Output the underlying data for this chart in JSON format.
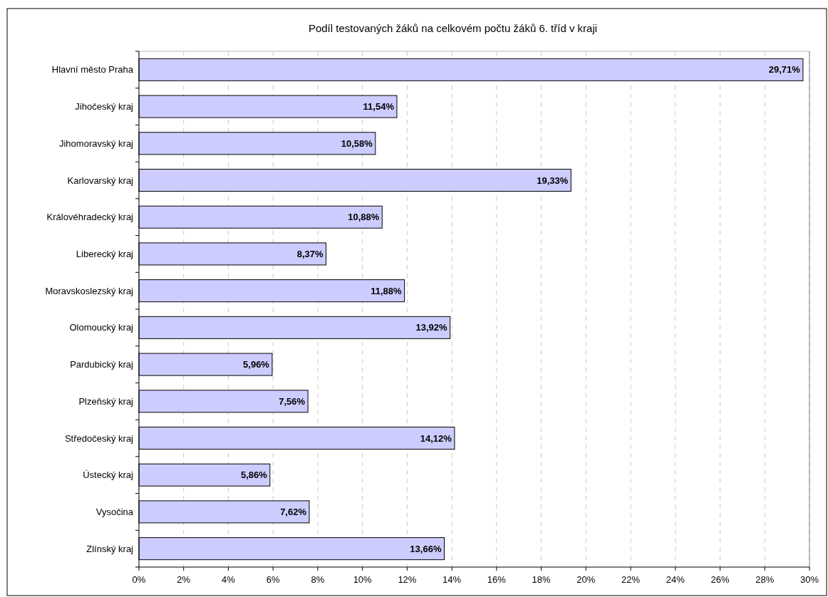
{
  "chart_data": {
    "type": "bar",
    "orientation": "horizontal",
    "title": "Podíl testovaných žáků na celkovém počtu žáků 6. tříd v kraji",
    "categories": [
      "Hlavní město Praha",
      "Jihočeský kraj",
      "Jihomoravský kraj",
      "Karlovarský kraj",
      "Královéhradecký kraj",
      "Liberecký kraj",
      "Moravskoslezský kraj",
      "Olomoucký kraj",
      "Pardubický kraj",
      "Plzeňský kraj",
      "Středočeský kraj",
      "Ústecký kraj",
      "Vysočina",
      "Zlínský kraj"
    ],
    "values": [
      29.71,
      11.54,
      10.58,
      19.33,
      10.88,
      8.37,
      11.88,
      13.92,
      5.96,
      7.56,
      14.12,
      5.86,
      7.62,
      13.66
    ],
    "value_labels": [
      "29,71%",
      "11,54%",
      "10,58%",
      "19,33%",
      "10,88%",
      "8,37%",
      "11,88%",
      "13,92%",
      "5,96%",
      "7,56%",
      "14,12%",
      "5,86%",
      "7,62%",
      "13,66%"
    ],
    "color": "#ccccff",
    "xlim": [
      0,
      30
    ],
    "xticks": [
      {
        "value": 0,
        "label": "0%"
      },
      {
        "value": 2,
        "label": "2%"
      },
      {
        "value": 4,
        "label": "4%"
      },
      {
        "value": 6,
        "label": "6%"
      },
      {
        "value": 8,
        "label": "8%"
      },
      {
        "value": 10,
        "label": "10%"
      },
      {
        "value": 12,
        "label": "12%"
      },
      {
        "value": 14,
        "label": "14%"
      },
      {
        "value": 16,
        "label": "16%"
      },
      {
        "value": 18,
        "label": "18%"
      },
      {
        "value": 20,
        "label": "20%"
      },
      {
        "value": 22,
        "label": "22%"
      },
      {
        "value": 24,
        "label": "24%"
      },
      {
        "value": 26,
        "label": "26%"
      },
      {
        "value": 28,
        "label": "28%"
      },
      {
        "value": 30,
        "label": "30%"
      }
    ],
    "grid": "x"
  }
}
